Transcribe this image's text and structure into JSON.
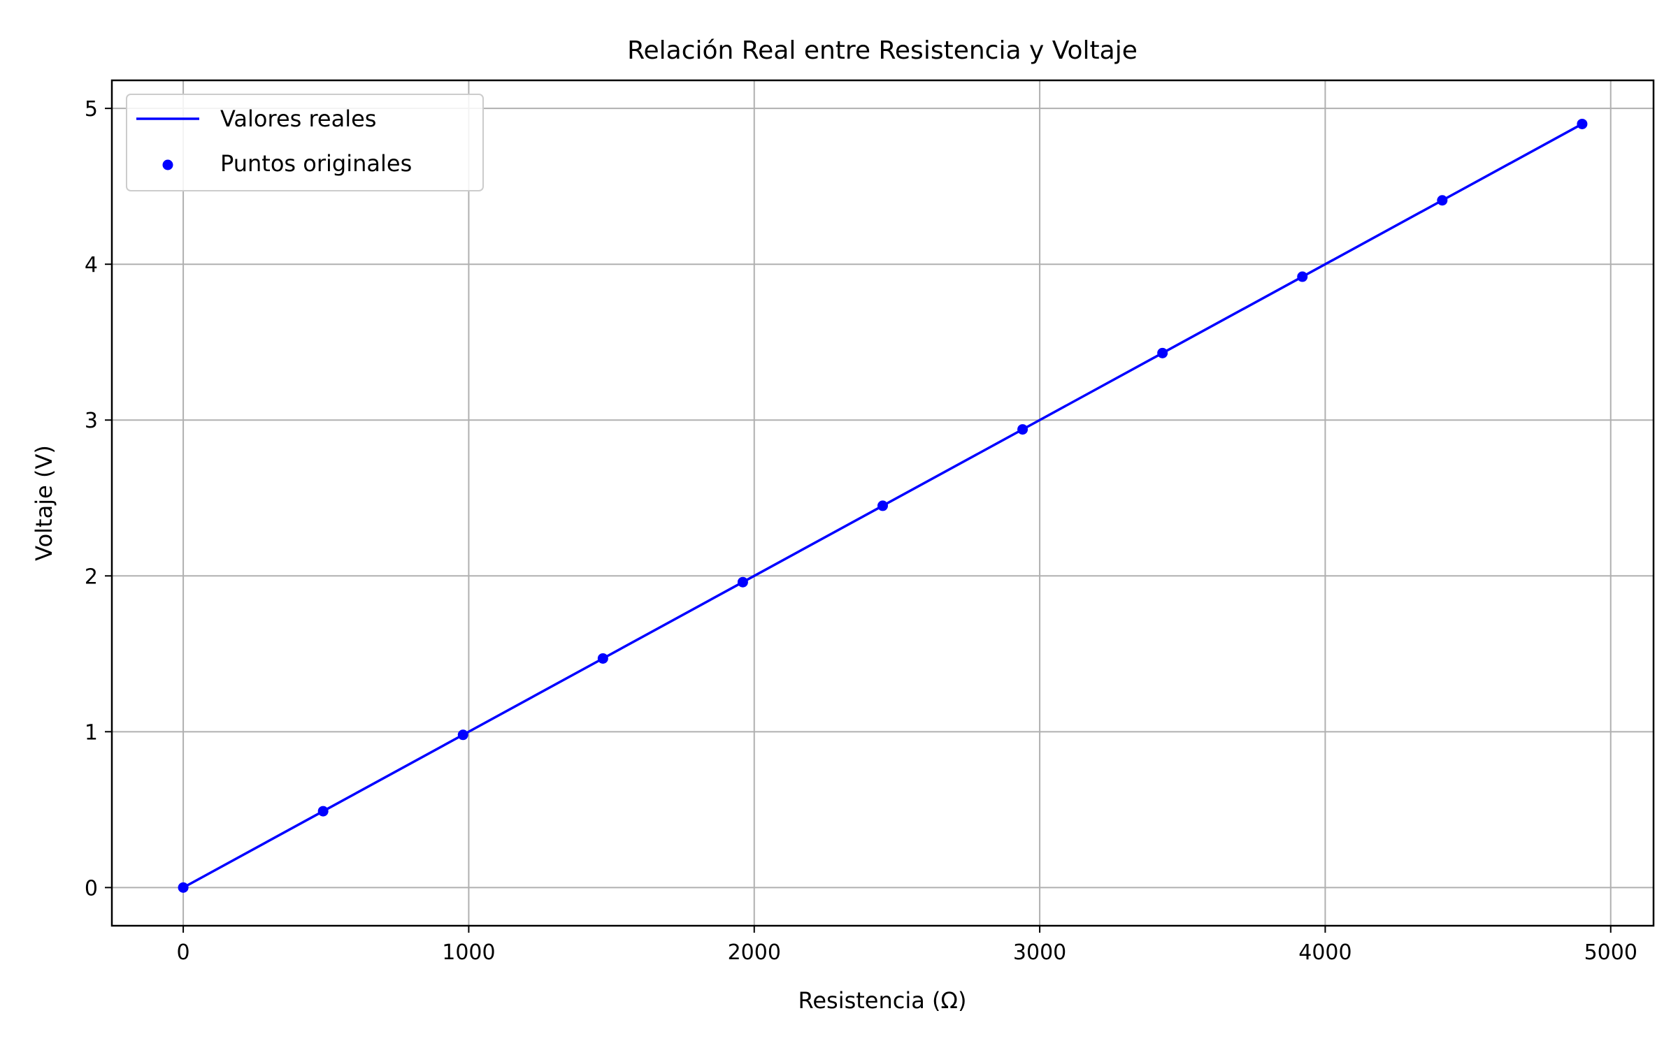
{
  "chart_data": {
    "type": "line",
    "title": "Relación Real entre Resistencia y Voltaje",
    "xlabel": "Resistencia (Ω)",
    "ylabel": "Voltaje (V)",
    "xlim": [
      -250,
      5150
    ],
    "ylim": [
      -0.245,
      5.18
    ],
    "grid": true,
    "legend_position": "top-left",
    "x_ticks": [
      0,
      1000,
      2000,
      3000,
      4000,
      5000
    ],
    "y_ticks": [
      0,
      1,
      2,
      3,
      4,
      5
    ],
    "series": [
      {
        "name": "Valores reales",
        "kind": "line",
        "color": "#0000ff",
        "x": [
          0,
          490,
          980,
          1470,
          1960,
          2450,
          2940,
          3430,
          3920,
          4410,
          4900
        ],
        "y": [
          0,
          0.49,
          0.98,
          1.47,
          1.96,
          2.45,
          2.94,
          3.43,
          3.92,
          4.41,
          4.9
        ]
      },
      {
        "name": "Puntos originales",
        "kind": "scatter",
        "color": "#0000ff",
        "x": [
          0,
          490,
          980,
          1470,
          1960,
          2450,
          2940,
          3430,
          3920,
          4410,
          4900
        ],
        "y": [
          0,
          0.49,
          0.98,
          1.47,
          1.96,
          2.45,
          2.94,
          3.43,
          3.92,
          4.41,
          4.9
        ]
      }
    ]
  }
}
